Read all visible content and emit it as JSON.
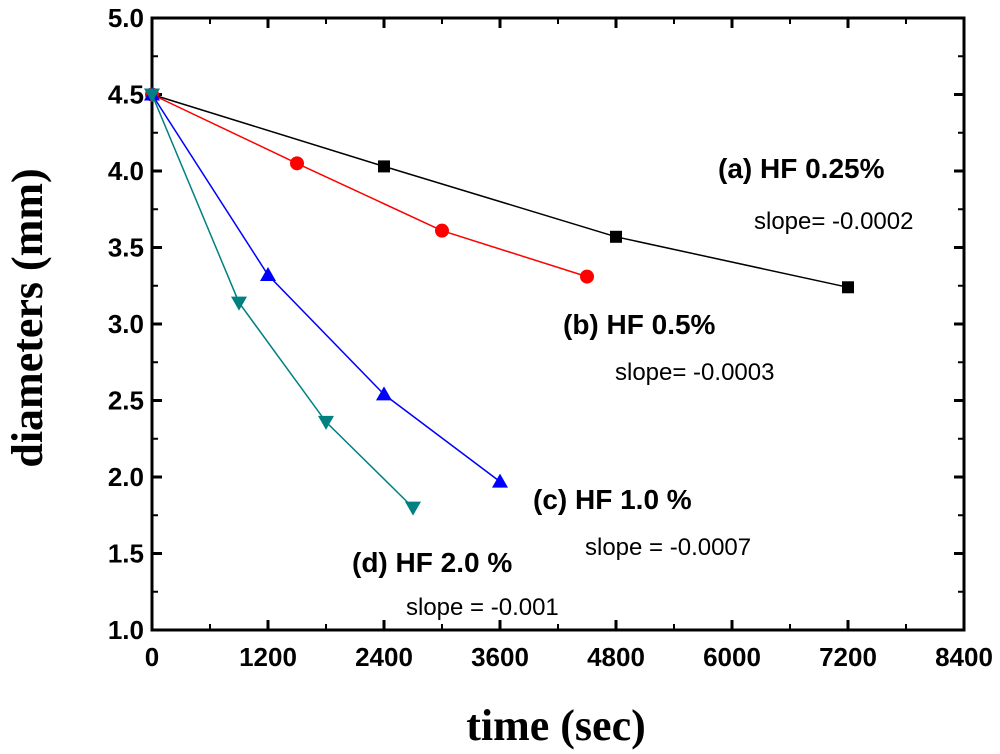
{
  "chart_data": {
    "type": "line",
    "title": "",
    "xlabel": "time (sec)",
    "ylabel": "diameters  (mm)",
    "xlim": [
      0,
      8400
    ],
    "ylim": [
      1.0,
      5.0
    ],
    "x_ticks": [
      0,
      1200,
      2400,
      3600,
      4800,
      6000,
      7200,
      8400
    ],
    "y_ticks": [
      1.0,
      1.5,
      2.0,
      2.5,
      3.0,
      3.5,
      4.0,
      4.5,
      5.0
    ],
    "x_tick_labels": [
      "0",
      "1200",
      "2400",
      "3600",
      "4800",
      "6000",
      "7200",
      "8400"
    ],
    "y_tick_labels": [
      "1.0",
      "1.5",
      "2.0",
      "2.5",
      "3.0",
      "3.5",
      "4.0",
      "4.5",
      "5.0"
    ],
    "grid": false,
    "series": [
      {
        "name": "(a) HF 0.25%",
        "slope_text": "slope= -0.0002",
        "color": "#000000",
        "marker": "square",
        "x": [
          0,
          2400,
          4800,
          7200
        ],
        "y": [
          4.5,
          4.03,
          3.57,
          3.24
        ]
      },
      {
        "name": "(b) HF 0.5%",
        "slope_text": "slope= -0.0003",
        "color": "#ff0000",
        "marker": "circle",
        "x": [
          0,
          1500,
          3000,
          4500
        ],
        "y": [
          4.5,
          4.05,
          3.61,
          3.31
        ]
      },
      {
        "name": "(c) HF 1.0 %",
        "slope_text": "slope = -0.0007",
        "color": "#0000ff",
        "marker": "triangle-up",
        "x": [
          0,
          1200,
          2400,
          3600
        ],
        "y": [
          4.5,
          3.32,
          2.54,
          1.97
        ]
      },
      {
        "name": "(d) HF 2.0 %",
        "slope_text": "slope = -0.001",
        "color": "#008080",
        "marker": "triangle-down",
        "x": [
          0,
          900,
          1800,
          2700
        ],
        "y": [
          4.5,
          3.14,
          2.36,
          1.8
        ]
      }
    ]
  }
}
